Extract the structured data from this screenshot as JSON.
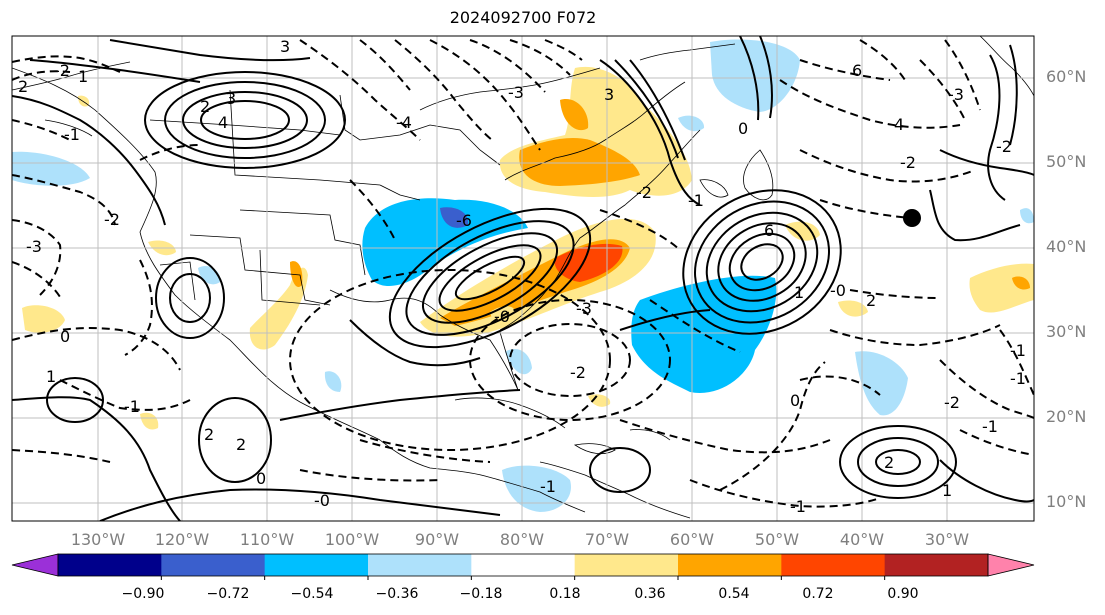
{
  "title": "2024092700 F072",
  "lat_labels": [
    "60°N",
    "50°N",
    "40°N",
    "30°N",
    "20°N",
    "10°N"
  ],
  "lon_labels": [
    "130°W",
    "120°W",
    "110°W",
    "100°W",
    "90°W",
    "80°W",
    "70°W",
    "60°W",
    "50°W",
    "40°W",
    "30°W"
  ],
  "colorbar": {
    "ticks": [
      "−0.90",
      "−0.72",
      "−0.54",
      "−0.36",
      "−0.18",
      "0.18",
      "0.36",
      "0.54",
      "0.72",
      "0.90"
    ],
    "colors": [
      "#9b30d8",
      "#00008b",
      "#3a5fcd",
      "#00bfff",
      "#aee1fb",
      "#ffffff",
      "#ffe88c",
      "#ffa500",
      "#ff4500",
      "#b22222",
      "#ff82ab"
    ]
  },
  "contour_labels": [
    "1",
    "2",
    "3",
    "4",
    "3",
    "6",
    "-3",
    "0",
    "-2",
    "-1",
    "2",
    "6",
    "4",
    "-4",
    "-2",
    "2",
    "-1",
    "-3",
    "-6",
    "-2",
    "2",
    "0",
    "-1",
    "-2",
    "-3",
    "-3",
    "-2",
    "-1",
    "1",
    "2",
    "3",
    "-2",
    "-1",
    "0",
    "-0",
    "-1",
    "1",
    "2",
    "0",
    "-1",
    "-2",
    "-0",
    "1",
    "-1",
    "-0"
  ],
  "marker": "filled-circle"
}
